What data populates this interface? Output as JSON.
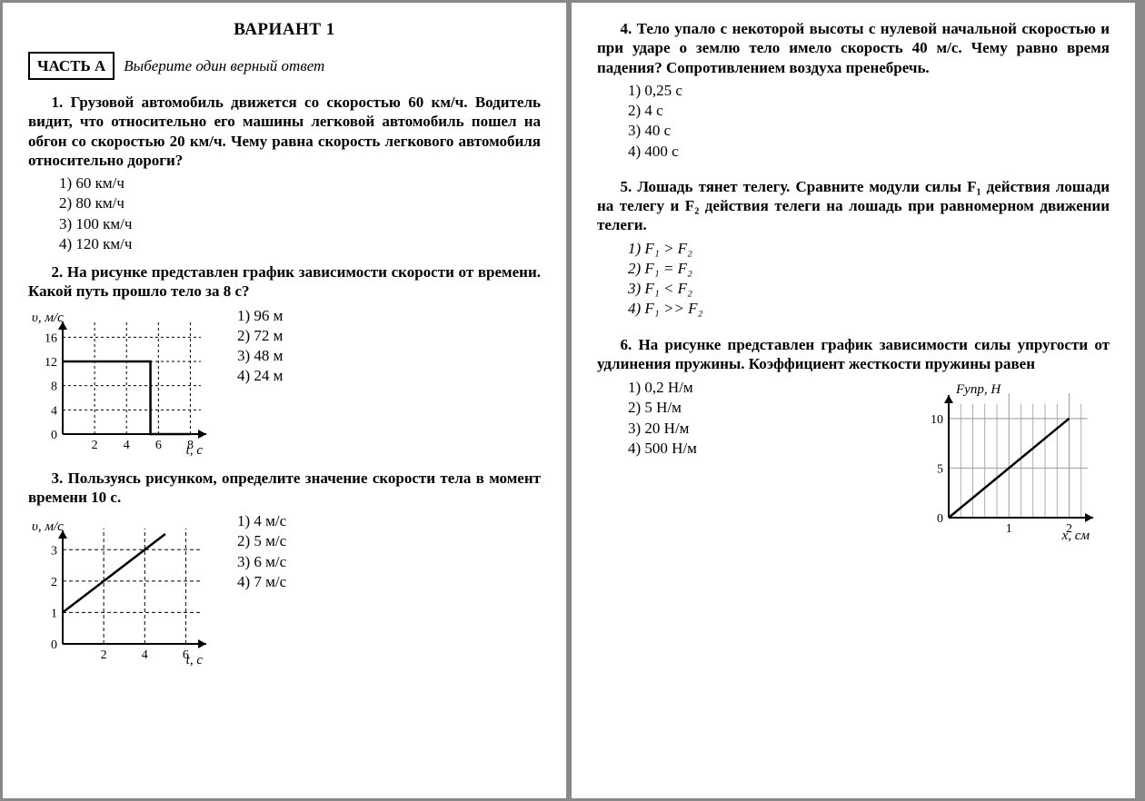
{
  "title": "ВАРИАНТ 1",
  "partA": {
    "label": "ЧАСТЬ А",
    "instruction": "Выберите один верный ответ"
  },
  "q1": {
    "text": "1. Грузовой автомобиль движется со скоростью 60 км/ч. Водитель видит, что относительно его машины легковой автомобиль пошел на обгон со скоростью 20 км/ч. Чему равна скорость легкового автомобиля относительно дороги?",
    "opts": [
      "1) 60 км/ч",
      "2) 80 км/ч",
      "3) 100 км/ч",
      "4) 120 км/ч"
    ]
  },
  "q2": {
    "text": "2. На рисунке представлен график зависимости скорости от времени. Какой путь прошло тело за 8 с?",
    "opts": [
      "1) 96 м",
      "2) 72 м",
      "3) 48 м",
      "4) 24 м"
    ],
    "chart": {
      "ylabel": "υ, м/с",
      "xlabel": "t, с",
      "xmax": 9,
      "ymax": 18,
      "xticks": [
        2,
        4,
        6,
        8
      ],
      "yticks": [
        0,
        4,
        8,
        12,
        16
      ],
      "grid_dash": "3,3",
      "line": [
        [
          0,
          12
        ],
        [
          5.5,
          12
        ],
        [
          5.5,
          0
        ],
        [
          8,
          0
        ]
      ],
      "line_width": 2.5,
      "colors": {
        "axis": "#000",
        "grid": "#000",
        "line": "#000",
        "bg": "#fff"
      }
    }
  },
  "q3": {
    "text": "3. Пользуясь рисунком, определите значение скорости тела в момент времени 10 с.",
    "opts": [
      "1) 4 м/с",
      "2) 5 м/с",
      "3) 6 м/с",
      "4) 7 м/с"
    ],
    "chart": {
      "ylabel": "υ, м/с",
      "xlabel": "t, с",
      "xmax": 7,
      "ymax": 3.5,
      "xticks": [
        2,
        4,
        6
      ],
      "yticks": [
        0,
        1,
        2,
        3
      ],
      "grid_dash": "4,3",
      "line": [
        [
          0,
          1
        ],
        [
          5,
          3.5
        ]
      ],
      "line_width": 2.5,
      "colors": {
        "axis": "#000",
        "grid": "#000",
        "line": "#000",
        "bg": "#fff"
      }
    }
  },
  "q4": {
    "text": "4. Тело упало с некоторой высоты с нулевой начальной скоростью и при ударе о землю тело имело скорость 40 м/с. Чему равно время падения? Сопротивлением воздуха пренебречь.",
    "opts": [
      "1) 0,25 с",
      "2) 4 с",
      "3) 40 с",
      "4) 400 с"
    ]
  },
  "q5": {
    "text": "5. Лошадь тянет телегу. Сравните модули силы F₁ действия лошади на телегу и F₂ действия телеги на лошадь при равномерном движении телеги.",
    "opts": [
      "1) F₁ > F₂",
      "2) F₁ = F₂",
      "3) F₁ < F₂",
      "4) F₁ >> F₂"
    ]
  },
  "q6": {
    "text": "6. На рисунке представлен график зависимости силы упругости от удлинения пружины. Коэффициент жесткости пружины равен",
    "opts": [
      "1) 0,2 Н/м",
      "2) 5 Н/м",
      "3) 20 Н/м",
      "4) 500 Н/м"
    ],
    "chart": {
      "ylabel": "Fупр, Н",
      "xlabel": "x, см",
      "xmax": 2.4,
      "ymax": 12,
      "xticks": [
        1,
        2
      ],
      "yticks": [
        0,
        5,
        10
      ],
      "minor_x": [
        0.2,
        0.4,
        0.6,
        0.8,
        1.2,
        1.4,
        1.6,
        1.8,
        2.2
      ],
      "grid_dash": "0",
      "line": [
        [
          0,
          0
        ],
        [
          2,
          10
        ]
      ],
      "line_width": 2.5,
      "colors": {
        "axis": "#000",
        "grid": "#999",
        "line": "#000",
        "bg": "#fff"
      }
    }
  }
}
